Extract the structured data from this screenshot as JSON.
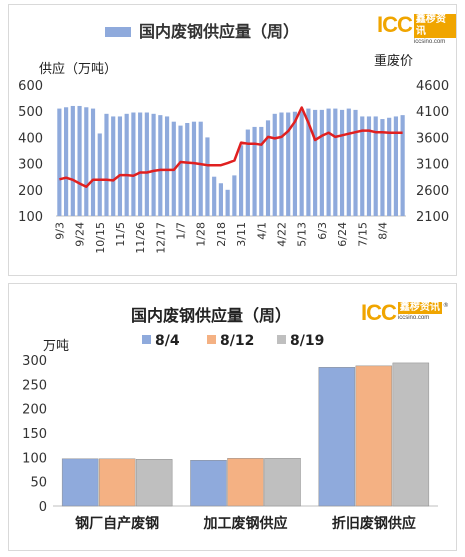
{
  "logo": {
    "main": "ICC",
    "cn": "鑫椤资讯",
    "url": "iccsino.com",
    "reg": "®"
  },
  "chart1": {
    "type": "bar+line",
    "title": "国内废钢供应量（周）",
    "ylabel_left": "供应（万吨）",
    "ylabel_right": "重废价",
    "ylim_left": [
      100,
      600
    ],
    "yticks_left": [
      "100",
      "200",
      "300",
      "400",
      "500",
      "600"
    ],
    "ylim_right": [
      2100,
      4600
    ],
    "yticks_right": [
      "2100",
      "2600",
      "3100",
      "3600",
      "4100",
      "4600"
    ],
    "xticks": [
      "9/3",
      "9/24",
      "10/15",
      "11/5",
      "11/26",
      "12/17",
      "1/7",
      "1/28",
      "2/18",
      "3/11",
      "4/1",
      "4/22",
      "5/13",
      "6/3",
      "6/24",
      "7/15",
      "8/4"
    ],
    "bars": [
      510,
      515,
      520,
      520,
      515,
      510,
      415,
      490,
      480,
      480,
      490,
      495,
      495,
      495,
      490,
      485,
      480,
      460,
      445,
      455,
      460,
      460,
      400,
      250,
      225,
      200,
      255,
      370,
      430,
      440,
      440,
      465,
      490,
      495,
      495,
      498,
      500,
      510,
      505,
      505,
      510,
      510,
      505,
      510,
      505,
      480,
      480,
      480,
      470,
      475,
      480,
      485
    ],
    "line": [
      2800,
      2830,
      2790,
      2720,
      2660,
      2790,
      2790,
      2790,
      2780,
      2880,
      2880,
      2870,
      2930,
      2930,
      2960,
      2980,
      2980,
      2980,
      3130,
      3120,
      3110,
      3090,
      3070,
      3070,
      3070,
      3110,
      3160,
      3500,
      3480,
      3480,
      3460,
      3610,
      3580,
      3610,
      3720,
      3900,
      4170,
      3880,
      3550,
      3630,
      3690,
      3610,
      3640,
      3670,
      3700,
      3730,
      3730,
      3700,
      3700,
      3690,
      3690,
      3690
    ]
  },
  "chart2": {
    "type": "bar",
    "title": "国内废钢供应量（周）",
    "ylabel": "万吨",
    "ylim": [
      0,
      300
    ],
    "yticks": [
      "0",
      "50",
      "100",
      "150",
      "200",
      "250",
      "300"
    ],
    "categories": [
      "钢厂自产废钢",
      "加工废钢供应",
      "折旧废钢供应"
    ],
    "series": [
      {
        "name": "8/4",
        "values": [
          97,
          94,
          285
        ],
        "color": "#8faadc"
      },
      {
        "name": "8/12",
        "values": [
          97,
          98,
          288
        ],
        "color": "#f4b183"
      },
      {
        "name": "8/19",
        "values": [
          96,
          98,
          294
        ],
        "color": "#bfbfbf"
      }
    ]
  }
}
